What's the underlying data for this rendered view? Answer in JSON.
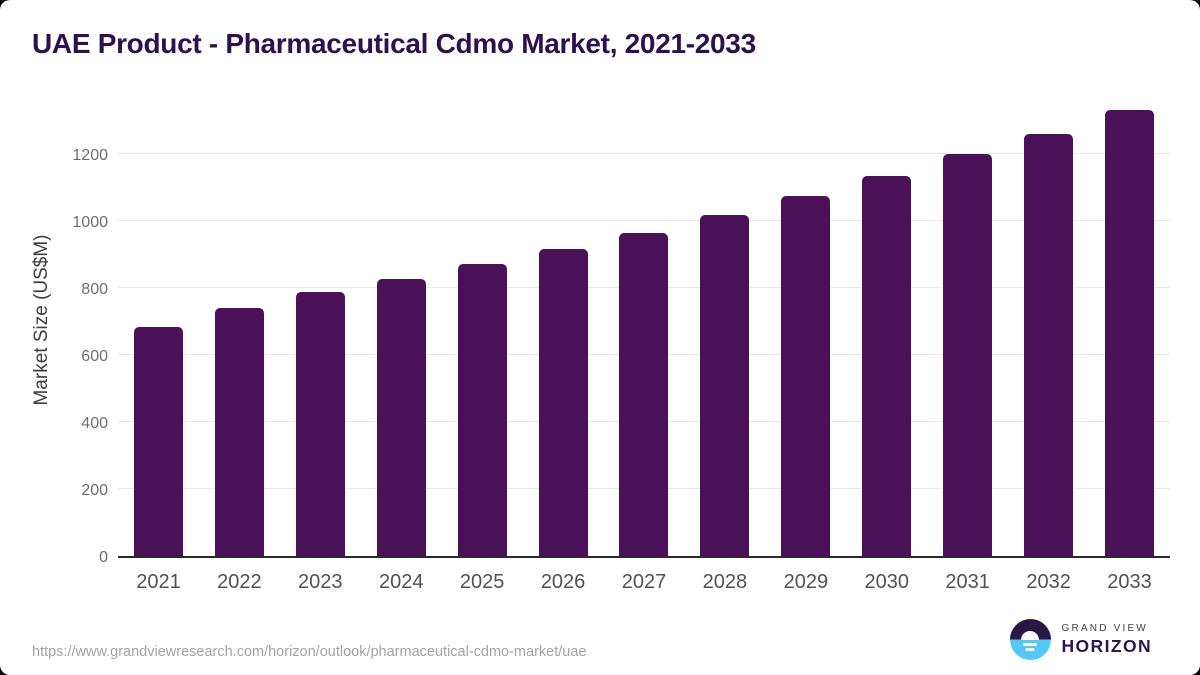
{
  "title": "UAE Product - Pharmaceutical Cdmo Market, 2021-2033",
  "source_url": "https://www.grandviewresearch.com/horizon/outlook/pharmaceutical-cdmo-market/uae",
  "logo": {
    "line1": "GRAND VIEW",
    "line2": "HORIZON",
    "mark": "sunrise-over-water-icon",
    "colors": {
      "top": "#2a1745",
      "bottom": "#54c8f2",
      "text": "#2d1650"
    }
  },
  "colors": {
    "bar": "#4a1159",
    "title": "#2f0f4d",
    "gridline": "#e8e8e8",
    "axis_line": "#2b2b2b",
    "tick_label": "#6e6e6e",
    "x_label": "#525252",
    "url_text": "#a3a3a3",
    "card_background": "#ffffff",
    "page_background": "#000000"
  },
  "chart_data": {
    "type": "bar",
    "title": "UAE Product - Pharmaceutical Cdmo Market, 2021-2033",
    "categories": [
      "2021",
      "2022",
      "2023",
      "2024",
      "2025",
      "2026",
      "2027",
      "2028",
      "2029",
      "2030",
      "2031",
      "2032",
      "2033"
    ],
    "values": [
      685,
      742,
      788,
      828,
      873,
      918,
      966,
      1020,
      1076,
      1136,
      1200,
      1261,
      1331
    ],
    "xlabel": "",
    "ylabel": "Market Size (US$M)",
    "ylim": [
      0,
      1380
    ],
    "yticks": [
      0,
      200,
      400,
      600,
      800,
      1000,
      1200
    ],
    "grid": "horizontal",
    "legend": "none",
    "bar_color": "#4a1159"
  }
}
